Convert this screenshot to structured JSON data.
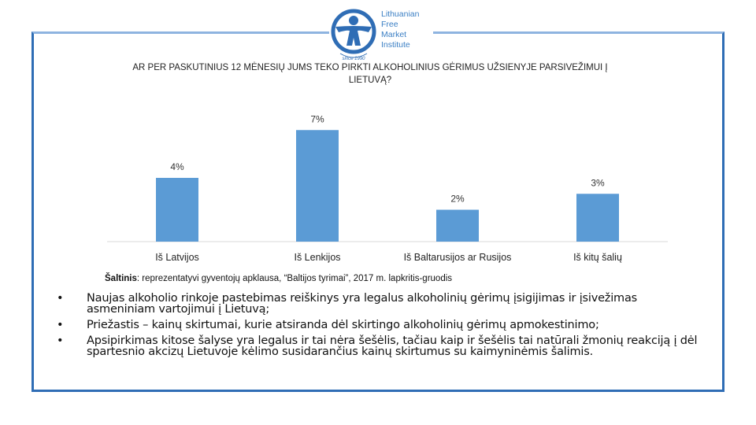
{
  "logo": {
    "lines": [
      "Lithuanian",
      "Free",
      "Market",
      "Institute"
    ],
    "tagline": "since 1990",
    "colors": {
      "brand": "#2f6db5"
    }
  },
  "chart_data": {
    "type": "bar",
    "title": "AR PER PASKUTINIUS 12 MĖNESIŲ JUMS TEKO PIRKTI ALKOHOLINIUS GĖRIMUS UŽSIENYJE PARSIVEŽIMUI Į LIETUVĄ?",
    "categories": [
      "Iš Latvijos",
      "Iš Lenkijos",
      "Iš Baltarusijos ar Rusijos",
      "Iš kitų šalių"
    ],
    "values": [
      4,
      7,
      2,
      3
    ],
    "value_labels": [
      "4%",
      "7%",
      "2%",
      "3%"
    ],
    "ylim": [
      0,
      8
    ],
    "grid": false,
    "bar_color": "#5b9bd5"
  },
  "source": {
    "label": "Šaltinis",
    "text": ": reprezentatyvi gyventojų apklausa, “Baltijos tyrimai”, 2017 m. lapkritis-gruodis"
  },
  "bullets": [
    "Naujas alkoholio rinkoje pastebimas reiškinys yra legalus alkoholinių gėrimų įsigijimas ir įsivežimas asmeniniam vartojimui į Lietuvą;",
    "Priežastis – kainų skirtumai, kurie atsiranda dėl skirtingo alkoholinių gėrimų apmokestinimo;",
    "Apsipirkimas kitose šalyse yra legalus ir tai nėra šešėlis, tačiau kaip ir šešėlis tai natūrali žmonių reakciją į dėl spartesnio akcizų Lietuvoje kėlimo susidarančius kainų skirtumus su kaimyninėmis šalimis."
  ]
}
